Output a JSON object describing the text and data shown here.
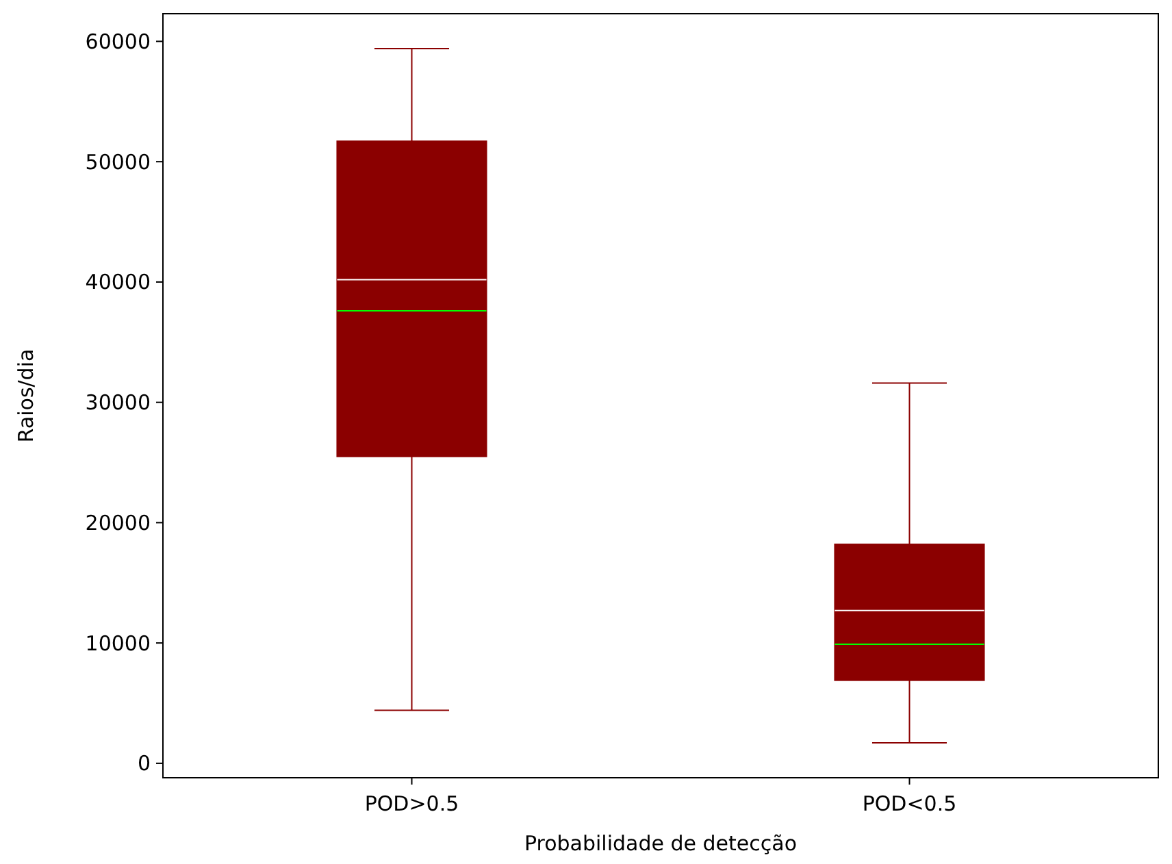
{
  "chart_data": {
    "type": "box",
    "xlabel": "Probabilidade de detecção",
    "ylabel": "Raios/dia",
    "categories": [
      "POD>0.5",
      "POD<0.5"
    ],
    "color": "#8b0000",
    "boxes": [
      {
        "low": 4400,
        "q1": 25500,
        "median": 37600,
        "q3": 51700,
        "high": 59400,
        "mean": 40200
      },
      {
        "low": 1700,
        "q1": 6900,
        "median": 9900,
        "q3": 18200,
        "high": 31600,
        "mean": 12700
      }
    ],
    "ylim": [
      -1200,
      62300
    ],
    "yticks": [
      0,
      10000,
      20000,
      30000,
      40000,
      50000,
      60000
    ]
  }
}
